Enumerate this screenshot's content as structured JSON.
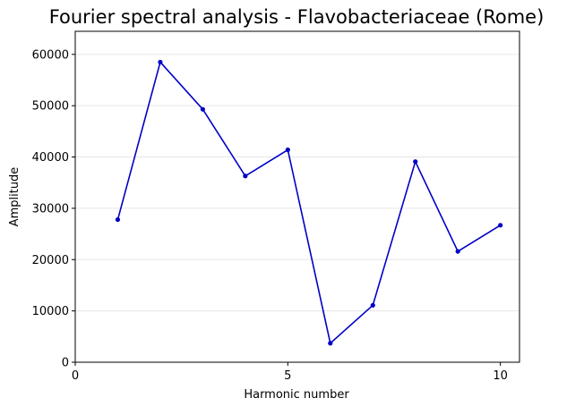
{
  "chart_data": {
    "type": "line",
    "title": "Fourier spectral analysis - Flavobacteriaceae (Rome)",
    "xlabel": "Harmonic number",
    "ylabel": "Amplitude",
    "xlim": [
      0,
      10.45
    ],
    "ylim": [
      0,
      64500
    ],
    "xticks": [
      0,
      5,
      10
    ],
    "yticks": [
      0,
      10000,
      20000,
      30000,
      40000,
      50000,
      60000
    ],
    "grid": "y",
    "series": [
      {
        "color": "#0000c8",
        "x": [
          1,
          2,
          3,
          4,
          5,
          6,
          7,
          8,
          9,
          10
        ],
        "y": [
          27800,
          58500,
          49300,
          36300,
          41400,
          3700,
          11100,
          39100,
          21600,
          26700
        ]
      }
    ]
  }
}
